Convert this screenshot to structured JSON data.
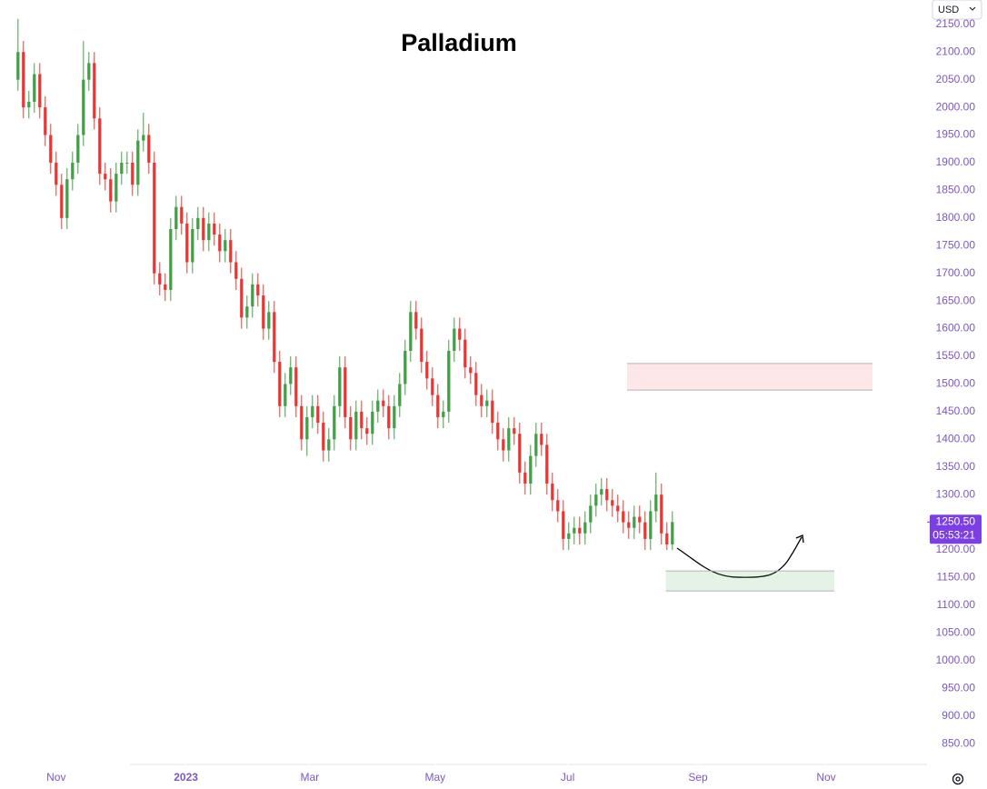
{
  "chart_data": {
    "type": "candlestick",
    "title": "Palladium",
    "currency": "USD",
    "open": [
      2050,
      2100,
      2000,
      2010,
      2060,
      2000,
      1950,
      1900,
      1860,
      1800,
      1870,
      1900,
      1950,
      2050,
      2080,
      1980,
      1880,
      1870,
      1830,
      1880,
      1900,
      1900,
      1860,
      1940,
      1950,
      1900,
      1700,
      1680,
      1670,
      1780,
      1820,
      1790,
      1720,
      1780,
      1800,
      1760,
      1790,
      1770,
      1740,
      1760,
      1720,
      1690,
      1620,
      1640,
      1680,
      1660,
      1600,
      1630,
      1540,
      1460,
      1500,
      1530,
      1460,
      1400,
      1440,
      1460,
      1430,
      1380,
      1400,
      1460,
      1530,
      1440,
      1400,
      1450,
      1420,
      1410,
      1450,
      1470,
      1460,
      1420,
      1460,
      1500,
      1560,
      1630,
      1600,
      1540,
      1510,
      1480,
      1440,
      1450,
      1560,
      1600,
      1580,
      1530,
      1520,
      1480,
      1460,
      1470,
      1430,
      1400,
      1380,
      1420,
      1410,
      1340,
      1320,
      1370,
      1410,
      1390,
      1320,
      1290,
      1270,
      1220,
      1230,
      1240,
      1230,
      1250,
      1280,
      1300,
      1310,
      1290,
      1280,
      1270,
      1250,
      1240,
      1260,
      1250,
      1220,
      1270,
      1300,
      1230,
      1210
    ],
    "high": [
      2160,
      2120,
      2030,
      2080,
      2080,
      2020,
      1970,
      1920,
      1880,
      1890,
      1920,
      1970,
      2120,
      2100,
      2100,
      2000,
      1900,
      1890,
      1900,
      1920,
      1920,
      1920,
      1960,
      1990,
      1970,
      1920,
      1720,
      1700,
      1800,
      1840,
      1840,
      1810,
      1800,
      1820,
      1820,
      1810,
      1810,
      1790,
      1780,
      1780,
      1740,
      1710,
      1660,
      1700,
      1700,
      1680,
      1650,
      1650,
      1560,
      1520,
      1550,
      1550,
      1480,
      1460,
      1480,
      1480,
      1450,
      1420,
      1480,
      1550,
      1550,
      1460,
      1470,
      1470,
      1440,
      1470,
      1490,
      1490,
      1480,
      1480,
      1520,
      1580,
      1650,
      1650,
      1620,
      1560,
      1530,
      1500,
      1470,
      1580,
      1620,
      1620,
      1600,
      1550,
      1540,
      1500,
      1490,
      1490,
      1450,
      1420,
      1440,
      1440,
      1430,
      1360,
      1390,
      1430,
      1430,
      1410,
      1340,
      1310,
      1290,
      1250,
      1260,
      1260,
      1270,
      1300,
      1320,
      1330,
      1330,
      1310,
      1300,
      1290,
      1270,
      1280,
      1280,
      1270,
      1290,
      1340,
      1320,
      1250,
      1270
    ],
    "low": [
      2030,
      1980,
      1980,
      1990,
      1980,
      1930,
      1880,
      1840,
      1780,
      1780,
      1850,
      1880,
      1930,
      2030,
      1960,
      1860,
      1850,
      1810,
      1810,
      1860,
      1880,
      1840,
      1840,
      1920,
      1880,
      1680,
      1660,
      1650,
      1650,
      1760,
      1770,
      1700,
      1700,
      1760,
      1740,
      1740,
      1750,
      1720,
      1720,
      1700,
      1670,
      1600,
      1600,
      1620,
      1640,
      1580,
      1580,
      1520,
      1440,
      1440,
      1480,
      1440,
      1380,
      1370,
      1420,
      1410,
      1360,
      1360,
      1380,
      1440,
      1420,
      1380,
      1380,
      1400,
      1390,
      1390,
      1430,
      1440,
      1400,
      1400,
      1440,
      1480,
      1540,
      1580,
      1520,
      1490,
      1460,
      1420,
      1420,
      1430,
      1540,
      1560,
      1510,
      1500,
      1460,
      1440,
      1440,
      1410,
      1380,
      1360,
      1360,
      1390,
      1320,
      1300,
      1300,
      1350,
      1370,
      1300,
      1270,
      1250,
      1200,
      1200,
      1210,
      1210,
      1210,
      1230,
      1260,
      1280,
      1270,
      1260,
      1250,
      1230,
      1220,
      1220,
      1230,
      1200,
      1200,
      1250,
      1210,
      1200,
      1200
    ],
    "close": [
      2100,
      2000,
      2010,
      2060,
      2000,
      1950,
      1900,
      1860,
      1800,
      1870,
      1900,
      1950,
      2050,
      2080,
      1980,
      1880,
      1870,
      1830,
      1880,
      1900,
      1900,
      1860,
      1940,
      1950,
      1900,
      1700,
      1680,
      1670,
      1780,
      1820,
      1790,
      1720,
      1780,
      1800,
      1760,
      1790,
      1770,
      1740,
      1760,
      1720,
      1690,
      1620,
      1640,
      1680,
      1660,
      1600,
      1630,
      1540,
      1460,
      1500,
      1530,
      1460,
      1400,
      1440,
      1460,
      1430,
      1380,
      1400,
      1460,
      1530,
      1440,
      1400,
      1450,
      1420,
      1410,
      1450,
      1470,
      1460,
      1420,
      1460,
      1500,
      1560,
      1630,
      1600,
      1540,
      1510,
      1480,
      1440,
      1450,
      1560,
      1600,
      1580,
      1530,
      1520,
      1480,
      1460,
      1470,
      1430,
      1400,
      1380,
      1420,
      1410,
      1340,
      1320,
      1370,
      1410,
      1390,
      1320,
      1290,
      1270,
      1220,
      1230,
      1240,
      1230,
      1250,
      1280,
      1300,
      1310,
      1290,
      1280,
      1270,
      1250,
      1240,
      1260,
      1250,
      1220,
      1270,
      1300,
      1230,
      1210,
      1250.5
    ],
    "up_color": "#43a047",
    "down_color": "#e53935",
    "xlim": [
      -3.3,
      166.7
    ],
    "xticks": [
      {
        "value": 7,
        "label": "Nov"
      },
      {
        "value": 30.8,
        "label": "2023"
      },
      {
        "value": 53.5,
        "label": "Mar"
      },
      {
        "value": 76.5,
        "label": "May"
      },
      {
        "value": 100.8,
        "label": "Jul"
      },
      {
        "value": 124.7,
        "label": "Sep"
      },
      {
        "value": 148.2,
        "label": "Nov"
      }
    ],
    "ylim": [
      814,
      2194
    ],
    "yticks": [
      {
        "value": 850,
        "label": "850.00"
      },
      {
        "value": 900,
        "label": "900.00"
      },
      {
        "value": 950,
        "label": "950.00"
      },
      {
        "value": 1000,
        "label": "1000.00"
      },
      {
        "value": 1050,
        "label": "1050.00"
      },
      {
        "value": 1100,
        "label": "1100.00"
      },
      {
        "value": 1150,
        "label": "1150.00"
      },
      {
        "value": 1200,
        "label": "1200.00"
      },
      {
        "value": 1250,
        "label": "1250.00"
      },
      {
        "value": 1300,
        "label": "1300.00"
      },
      {
        "value": 1350,
        "label": "1350.00"
      },
      {
        "value": 1400,
        "label": "1400.00"
      },
      {
        "value": 1450,
        "label": "1450.00"
      },
      {
        "value": 1500,
        "label": "1500.00"
      },
      {
        "value": 1550,
        "label": "1550.00"
      },
      {
        "value": 1600,
        "label": "1600.00"
      },
      {
        "value": 1650,
        "label": "1650.00"
      },
      {
        "value": 1700,
        "label": "1700.00"
      },
      {
        "value": 1750,
        "label": "1750.00"
      },
      {
        "value": 1800,
        "label": "1800.00"
      },
      {
        "value": 1850,
        "label": "1850.00"
      },
      {
        "value": 1900,
        "label": "1900.00"
      },
      {
        "value": 1950,
        "label": "1950.00"
      },
      {
        "value": 2000,
        "label": "2000.00"
      },
      {
        "value": 2050,
        "label": "2050.00"
      },
      {
        "value": 2100,
        "label": "2100.00"
      },
      {
        "value": 2150,
        "label": "2150.00"
      }
    ],
    "last_price": {
      "value": 1250.5,
      "label": "1250.50"
    },
    "countdown": "05:53:21",
    "zones": [
      {
        "x": [
          111.7,
          156.7
        ],
        "y": [
          1489,
          1537
        ],
        "color": "rgba(242,54,69,0.12)"
      },
      {
        "x": [
          118.8,
          149.7
        ],
        "y": [
          1126,
          1162
        ],
        "color": "rgba(76,175,80,0.15)"
      }
    ]
  }
}
